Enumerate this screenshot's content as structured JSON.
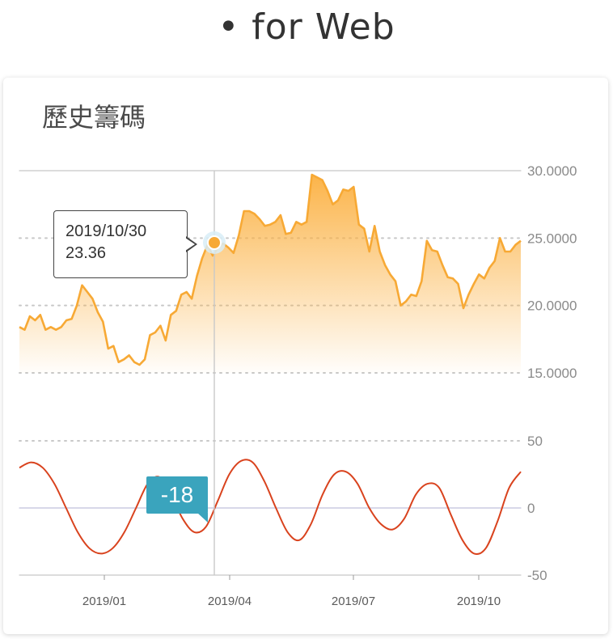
{
  "page_heading": "• for Web",
  "card": {
    "title": "歷史籌碼"
  },
  "tooltip": {
    "date": "2019/10/30",
    "value": "23.36"
  },
  "badge": {
    "value": "-18"
  },
  "colors": {
    "price_line": "#f7a935",
    "price_area_top": "#fbb040",
    "oscillator_line": "#d9431e",
    "badge_bg": "#3aa4bd",
    "grid": "#c8c8c8",
    "crosshair": "#c9c9c9"
  },
  "chart_data": [
    {
      "type": "area",
      "y_axis_side": "right",
      "ylim": [
        15,
        30
      ],
      "y_ticks": [
        "30.0000",
        "25.0000",
        "20.0000",
        "15.0000"
      ],
      "y_tick_values": [
        30,
        25,
        20,
        15
      ],
      "x_tick_labels": [
        "2019/01",
        "2019/04",
        "2019/07",
        "2019/10"
      ],
      "grid": "dotted horizontal",
      "series": [
        {
          "values": [
            18.4,
            18.2,
            19.2,
            18.9,
            19.3,
            18.2,
            18.4,
            18.2,
            18.4,
            18.9,
            19.0,
            20.0,
            21.5,
            21.0,
            20.5,
            19.5,
            18.8,
            16.8,
            17.0,
            15.8,
            16.0,
            16.3,
            15.8,
            15.6,
            16.0,
            17.8,
            18.0,
            18.5,
            17.4,
            19.3,
            19.6,
            20.8,
            21.0,
            20.5,
            22.2,
            23.5,
            24.5,
            23.7,
            24.3,
            24.6,
            24.3,
            23.9,
            25.2,
            27.0,
            27.0,
            26.8,
            26.4,
            25.9,
            26.0,
            26.2,
            26.7,
            25.3,
            25.4,
            26.2,
            26.0,
            26.2,
            29.7,
            29.5,
            29.3,
            28.5,
            27.5,
            27.8,
            28.6,
            28.5,
            28.8,
            26.0,
            25.7,
            24.0,
            25.9,
            24.0,
            23.0,
            22.3,
            21.8,
            20.0,
            20.3,
            20.8,
            20.7,
            21.8,
            24.8,
            24.1,
            24.0,
            23.0,
            22.1,
            22.0,
            21.6,
            19.8,
            20.8,
            21.6,
            22.3,
            22.0,
            22.8,
            23.3,
            25.0,
            24.0,
            24.0,
            24.5,
            24.8
          ]
        }
      ],
      "highlight": {
        "date": "2019/10/30",
        "value": 23.36
      }
    },
    {
      "type": "line",
      "y_axis_side": "right",
      "ylim": [
        -50,
        50
      ],
      "y_ticks": [
        "50",
        "0",
        "-50"
      ],
      "y_tick_values": [
        50,
        0,
        -50
      ],
      "x_tick_labels": [
        "2019/01",
        "2019/04",
        "2019/07",
        "2019/10"
      ],
      "series": [
        {
          "values": [
            30,
            34,
            30,
            18,
            0,
            -18,
            -30,
            -34,
            -30,
            -18,
            0,
            18,
            23,
            10,
            -8,
            -18,
            -14,
            5,
            25,
            35,
            34,
            20,
            0,
            -18,
            -24,
            -12,
            10,
            25,
            27,
            18,
            0,
            -12,
            -16,
            -8,
            10,
            18,
            15,
            -5,
            -24,
            -34,
            -30,
            -10,
            15,
            27
          ]
        }
      ]
    }
  ]
}
